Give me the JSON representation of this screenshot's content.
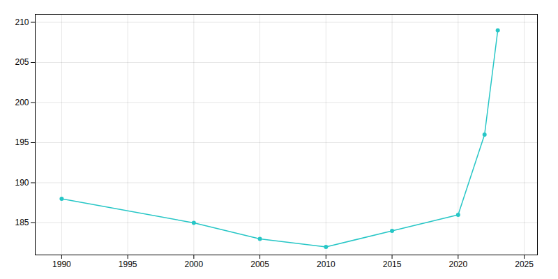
{
  "chart_data": {
    "type": "line",
    "x": [
      1990,
      2000,
      2005,
      2010,
      2015,
      2020,
      2022,
      2023
    ],
    "values": [
      188,
      185,
      183,
      182,
      184,
      186,
      196,
      209
    ],
    "color": "#26c6c6",
    "marker": "o",
    "xlim": [
      1988,
      2026
    ],
    "ylim": [
      181,
      211
    ],
    "xticks": [
      1990,
      1995,
      2000,
      2005,
      2010,
      2015,
      2020,
      2025
    ],
    "yticks": [
      185,
      190,
      195,
      200,
      205,
      210
    ],
    "grid": true
  }
}
